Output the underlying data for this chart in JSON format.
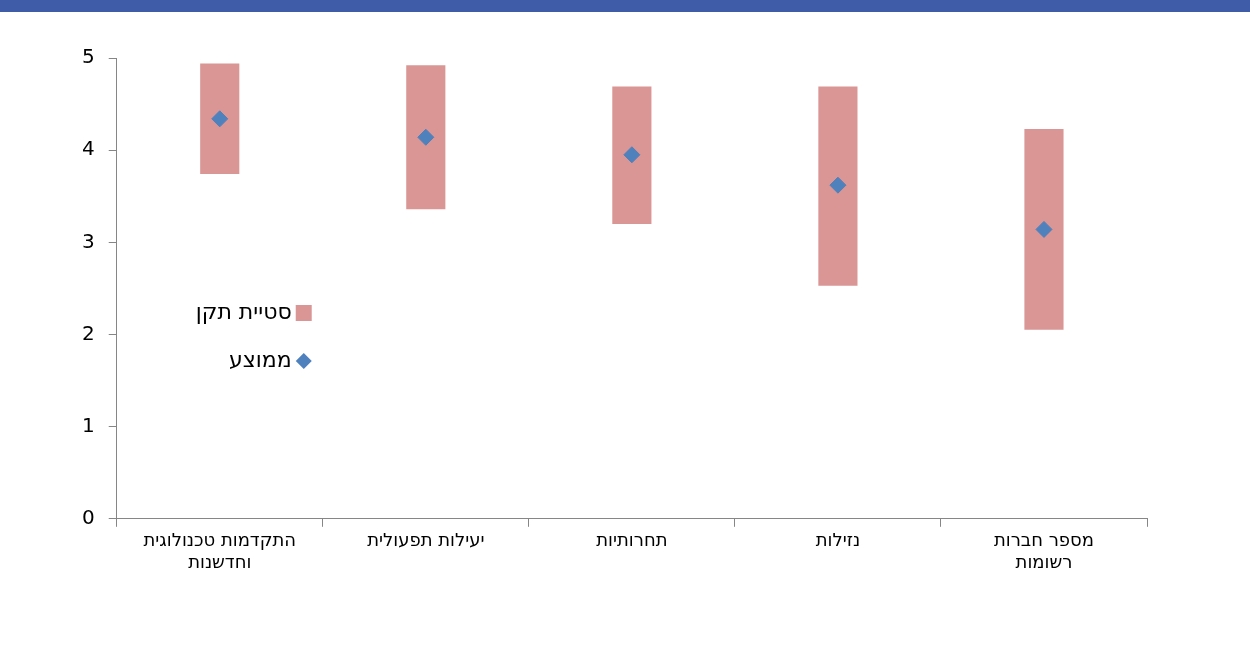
{
  "chart_data": {
    "type": "bar",
    "categories": [
      "התקדמות טכנולוגית וחדשנות",
      "יעילות תפעולית",
      "תחרותיות",
      "נזילות",
      "מספר חברות רשומות"
    ],
    "series": [
      {
        "name": "סטיית תקן",
        "color": "#d99694",
        "base": [
          3.74,
          3.36,
          3.2,
          2.53,
          2.05
        ],
        "values": [
          1.2,
          1.56,
          1.49,
          2.16,
          2.18
        ]
      },
      {
        "name": "ממוצע",
        "type": "scatter",
        "color": "#4f81bd",
        "marker": "diamond",
        "values": [
          4.34,
          4.14,
          3.95,
          3.62,
          3.14
        ]
      }
    ],
    "ylim": [
      0,
      5
    ],
    "yticks": [
      0,
      1,
      2,
      3,
      4,
      5
    ],
    "grid": false,
    "legend": "left"
  }
}
